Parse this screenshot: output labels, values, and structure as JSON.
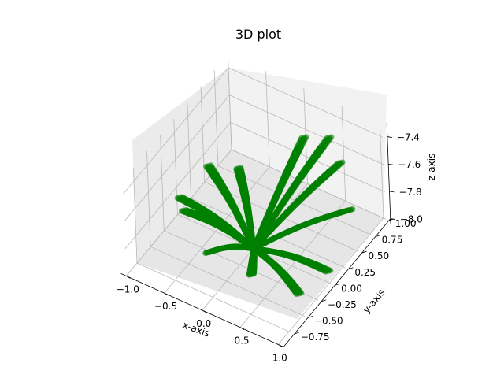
{
  "chart_data": {
    "type": "scatter",
    "title": "3D plot",
    "xlabel": "x-axis",
    "ylabel": "y-axis",
    "zlabel": "z-axis",
    "xlim": [
      -1.0,
      1.0
    ],
    "ylim": [
      -0.75,
      1.0
    ],
    "zlim": [
      -8.0,
      -7.4
    ],
    "xticks": [
      "−1.0",
      "−0.5",
      "0.0",
      "0.5",
      "1.0"
    ],
    "yticks": [
      "−0.75",
      "−0.50",
      "−0.25",
      "0.00",
      "0.25",
      "0.50",
      "0.75",
      "1.00"
    ],
    "zticks": [
      "−8.0",
      "−7.8",
      "−7.6",
      "−7.4"
    ],
    "grid": true,
    "marker_color": "#008000",
    "center": [
      0.0,
      0.0,
      -8.0
    ],
    "arms": [
      {
        "end": [
          -1.0,
          0.05,
          -7.9
        ]
      },
      {
        "end": [
          -0.8,
          -0.15,
          -7.85
        ]
      },
      {
        "end": [
          -0.75,
          0.25,
          -7.7
        ]
      },
      {
        "end": [
          -0.5,
          0.45,
          -7.75
        ]
      },
      {
        "end": [
          0.05,
          0.9,
          -7.6
        ]
      },
      {
        "end": [
          0.35,
          0.95,
          -7.55
        ]
      },
      {
        "end": [
          0.6,
          0.8,
          -7.6
        ]
      },
      {
        "end": [
          0.9,
          0.55,
          -7.75
        ]
      },
      {
        "end": [
          0.95,
          0.05,
          -7.95
        ]
      },
      {
        "end": [
          0.85,
          -0.35,
          -7.95
        ]
      },
      {
        "end": [
          0.3,
          -0.45,
          -7.9
        ]
      },
      {
        "end": [
          -0.35,
          -0.35,
          -7.95
        ]
      }
    ]
  }
}
